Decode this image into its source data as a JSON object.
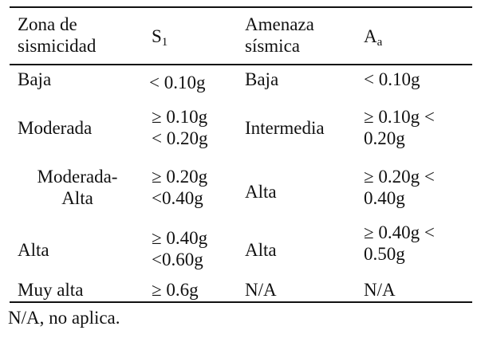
{
  "table": {
    "headers": {
      "zona": [
        "Zona de",
        "sismicidad"
      ],
      "s1": {
        "base": "S",
        "sub": "1"
      },
      "amenaza": [
        "Amenaza",
        "sísmica"
      ],
      "aa": {
        "base": "A",
        "sub": "a"
      }
    },
    "rows": [
      {
        "zona": [
          "Baja"
        ],
        "s1": [
          "< 0.10g"
        ],
        "amenaza": [
          "Baja"
        ],
        "aa": [
          "< 0.10g"
        ]
      },
      {
        "zona": [
          "Moderada"
        ],
        "s1": [
          "≥ 0.10g",
          "< 0.20g"
        ],
        "amenaza": [
          "Intermedia"
        ],
        "aa": [
          "≥ 0.10g <",
          "0.20g"
        ]
      },
      {
        "zona": [
          "Moderada-",
          "Alta"
        ],
        "s1": [
          "≥ 0.20g",
          "<0.40g"
        ],
        "amenaza": [
          "Alta"
        ],
        "aa": [
          "≥ 0.20g <",
          "0.40g"
        ]
      },
      {
        "zona": [
          "Alta"
        ],
        "s1": [
          "≥ 0.40g",
          "<0.60g"
        ],
        "amenaza": [
          "Alta"
        ],
        "aa": [
          "≥ 0.40g <",
          "0.50g"
        ]
      },
      {
        "zona": [
          "Muy alta"
        ],
        "s1": [
          "≥ 0.6g"
        ],
        "amenaza": [
          "N/A"
        ],
        "aa": [
          "N/A"
        ]
      }
    ]
  },
  "footnote": "N/A, no aplica."
}
